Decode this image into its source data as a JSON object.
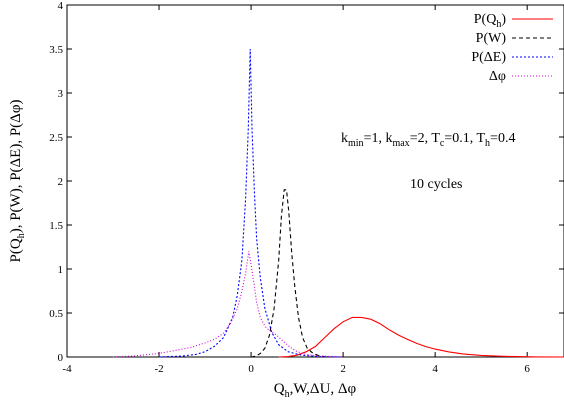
{
  "chart_data": {
    "type": "line",
    "xlim": [
      -4,
      6.8
    ],
    "ylim": [
      0,
      4
    ],
    "x_ticks": [
      -4,
      -2,
      0,
      2,
      4,
      6
    ],
    "y_ticks": [
      0,
      0.5,
      1,
      1.5,
      2,
      2.5,
      3,
      3.5,
      4
    ],
    "x_tick_labels": [
      "-4",
      "-2",
      "0",
      "2",
      "4",
      "6"
    ],
    "y_tick_labels": [
      "0",
      "0.5",
      "1",
      "1.5",
      "2",
      "2.5",
      "3",
      "3.5",
      "4"
    ],
    "xlabel": {
      "main": "Q",
      "sub": "h",
      "rest": ",W,ΔU, Δφ"
    },
    "ylabel": {
      "p1": "P(Q",
      "sub": "h",
      "p2": "), P(W), P(ΔE), P(Δφ)"
    },
    "grid": false,
    "legend_position": "top-right",
    "annotations": {
      "params": [
        {
          "text": "k",
          "sub": "min"
        },
        {
          "text": "=1, k",
          "sub": "max"
        },
        {
          "text": "=2, T",
          "sub": "c"
        },
        {
          "text": "=0.1, T",
          "sub": "h"
        },
        {
          "text": "=0.4",
          "sub": ""
        }
      ],
      "cycles": "10 cycles"
    },
    "series": [
      {
        "name": {
          "main": "P(Q",
          "sub": "h",
          "rest": ")"
        },
        "color": "#ff0000",
        "dash": "",
        "points": [
          [
            0.6,
            0.0
          ],
          [
            0.8,
            0.005
          ],
          [
            1.0,
            0.02
          ],
          [
            1.2,
            0.06
          ],
          [
            1.4,
            0.12
          ],
          [
            1.6,
            0.22
          ],
          [
            1.8,
            0.32
          ],
          [
            2.0,
            0.4
          ],
          [
            2.2,
            0.45
          ],
          [
            2.4,
            0.45
          ],
          [
            2.6,
            0.43
          ],
          [
            2.8,
            0.38
          ],
          [
            3.0,
            0.31
          ],
          [
            3.2,
            0.25
          ],
          [
            3.4,
            0.2
          ],
          [
            3.6,
            0.155
          ],
          [
            3.8,
            0.118
          ],
          [
            4.0,
            0.09
          ],
          [
            4.3,
            0.058
          ],
          [
            4.6,
            0.035
          ],
          [
            5.0,
            0.018
          ],
          [
            5.4,
            0.009
          ],
          [
            5.8,
            0.004
          ],
          [
            6.2,
            0.001
          ],
          [
            6.8,
            0.0
          ]
        ]
      },
      {
        "name": {
          "main": "P(W)",
          "sub": "",
          "rest": ""
        },
        "color": "#000000",
        "dash": "4,3",
        "points": [
          [
            0.0,
            0.0
          ],
          [
            0.1,
            0.01
          ],
          [
            0.2,
            0.04
          ],
          [
            0.3,
            0.1
          ],
          [
            0.4,
            0.25
          ],
          [
            0.5,
            0.55
          ],
          [
            0.6,
            1.1
          ],
          [
            0.66,
            1.6
          ],
          [
            0.72,
            1.9
          ],
          [
            0.77,
            1.9
          ],
          [
            0.82,
            1.65
          ],
          [
            0.88,
            1.2
          ],
          [
            0.95,
            0.8
          ],
          [
            1.03,
            0.45
          ],
          [
            1.12,
            0.22
          ],
          [
            1.22,
            0.1
          ],
          [
            1.35,
            0.04
          ],
          [
            1.5,
            0.01
          ],
          [
            1.7,
            0.0
          ]
        ]
      },
      {
        "name": {
          "main": "P(ΔE)",
          "sub": "",
          "rest": ""
        },
        "color": "#0000ff",
        "dash": "2,2",
        "points": [
          [
            -2.0,
            0.0
          ],
          [
            -1.5,
            0.01
          ],
          [
            -1.2,
            0.03
          ],
          [
            -1.0,
            0.06
          ],
          [
            -0.8,
            0.12
          ],
          [
            -0.6,
            0.22
          ],
          [
            -0.4,
            0.45
          ],
          [
            -0.3,
            0.7
          ],
          [
            -0.2,
            1.1
          ],
          [
            -0.12,
            1.8
          ],
          [
            -0.06,
            2.6
          ],
          [
            -0.02,
            3.5
          ],
          [
            0.02,
            2.6
          ],
          [
            0.07,
            1.9
          ],
          [
            0.12,
            1.35
          ],
          [
            0.2,
            0.9
          ],
          [
            0.3,
            0.55
          ],
          [
            0.45,
            0.28
          ],
          [
            0.6,
            0.14
          ],
          [
            0.8,
            0.06
          ],
          [
            1.1,
            0.02
          ],
          [
            1.5,
            0.005
          ],
          [
            2.0,
            0.0
          ]
        ]
      },
      {
        "name": {
          "main": "Δφ",
          "sub": "",
          "rest": ""
        },
        "color": "#cc00cc",
        "dash": "1,2",
        "points": [
          [
            -3.0,
            0.0
          ],
          [
            -2.6,
            0.01
          ],
          [
            -2.2,
            0.03
          ],
          [
            -1.9,
            0.05
          ],
          [
            -1.6,
            0.08
          ],
          [
            -1.3,
            0.11
          ],
          [
            -1.0,
            0.16
          ],
          [
            -0.8,
            0.2
          ],
          [
            -0.6,
            0.27
          ],
          [
            -0.45,
            0.38
          ],
          [
            -0.3,
            0.55
          ],
          [
            -0.2,
            0.75
          ],
          [
            -0.12,
            0.95
          ],
          [
            -0.05,
            1.2
          ],
          [
            0.0,
            1.05
          ],
          [
            0.06,
            0.85
          ],
          [
            0.12,
            0.62
          ],
          [
            0.2,
            0.45
          ],
          [
            0.3,
            0.35
          ],
          [
            0.4,
            0.3
          ],
          [
            0.55,
            0.25
          ],
          [
            0.7,
            0.18
          ],
          [
            0.85,
            0.11
          ],
          [
            1.0,
            0.06
          ],
          [
            1.2,
            0.03
          ],
          [
            1.5,
            0.01
          ],
          [
            2.0,
            0.0
          ]
        ]
      }
    ]
  }
}
